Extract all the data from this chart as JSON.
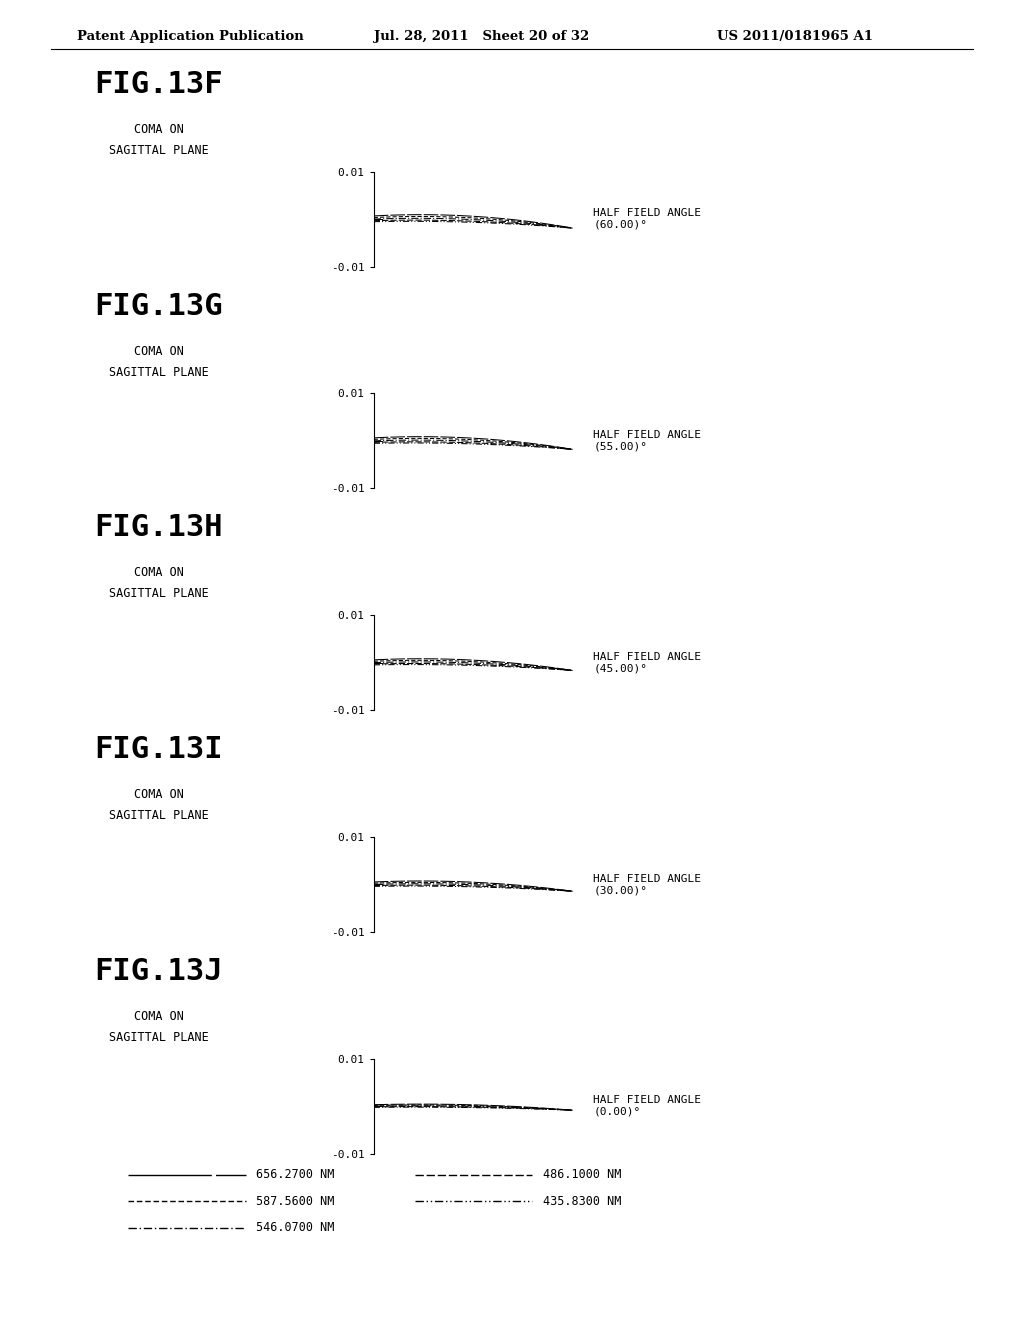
{
  "header_left": "Patent Application Publication",
  "header_mid": "Jul. 28, 2011   Sheet 20 of 32",
  "header_right": "US 2011/0181965 A1",
  "figures": [
    {
      "name": "FIG.13F",
      "subtitle1": "COMA ON",
      "subtitle2": "SAGITTAL PLANE",
      "angle": "60.00",
      "scale": 0.0055
    },
    {
      "name": "FIG.13G",
      "subtitle1": "COMA ON",
      "subtitle2": "SAGITTAL PLANE",
      "angle": "55.00",
      "scale": 0.0052
    },
    {
      "name": "FIG.13H",
      "subtitle1": "COMA ON",
      "subtitle2": "SAGITTAL PLANE",
      "angle": "45.00",
      "scale": 0.0048
    },
    {
      "name": "FIG.13I",
      "subtitle1": "COMA ON",
      "subtitle2": "SAGITTAL PLANE",
      "angle": "30.00",
      "scale": 0.0042
    },
    {
      "name": "FIG.13J",
      "subtitle1": "COMA ON",
      "subtitle2": "SAGITTAL PLANE",
      "angle": "0.00",
      "scale": 0.0025
    }
  ],
  "bg_color": "#ffffff",
  "text_color": "#000000",
  "ylim": [
    -0.01,
    0.01
  ],
  "legend_left": [
    {
      "label": "656.2700 NM",
      "dash": [
        12,
        2
      ]
    },
    {
      "label": "587.5600 NM",
      "dash": [
        4,
        2
      ]
    },
    {
      "label": "546.0700 NM",
      "dash": [
        6,
        2,
        1,
        2
      ]
    }
  ],
  "legend_right": [
    {
      "label": "486.1000 NM",
      "dash": [
        6,
        2
      ]
    },
    {
      "label": "435.8300 NM",
      "dash": [
        6,
        2,
        1,
        2,
        1,
        2
      ]
    }
  ]
}
